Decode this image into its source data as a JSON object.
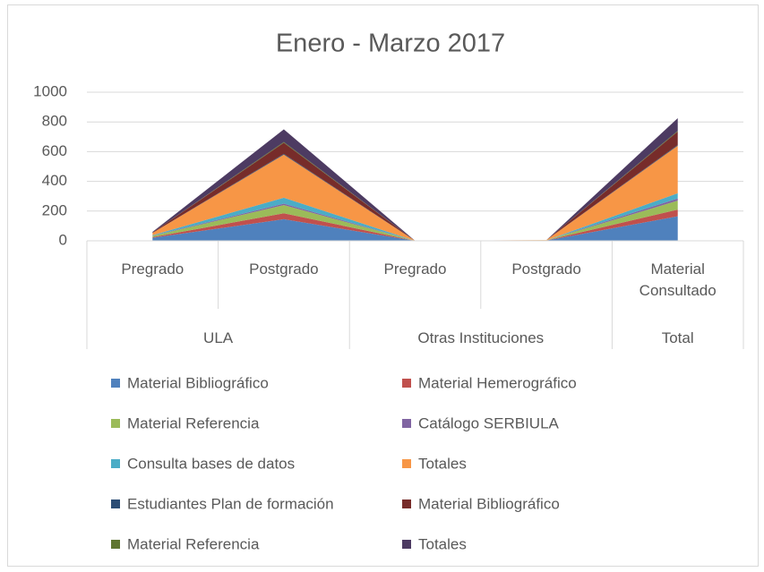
{
  "chart_data": {
    "type": "area",
    "stacked": true,
    "title": "Enero - Marzo 2017",
    "groups": [
      {
        "name": "ULA",
        "categories": [
          "Pregrado",
          "Postgrado"
        ]
      },
      {
        "name": "Otras Instituciones",
        "categories": [
          "Pregrado",
          "Postgrado"
        ]
      },
      {
        "name": "Total",
        "categories": [
          "Material Consultado"
        ]
      }
    ],
    "series": [
      {
        "name": "Material Bibliográfico",
        "color": "#4f81bd",
        "values": [
          20,
          145,
          0,
          2,
          165
        ]
      },
      {
        "name": "Material Hemerográfico",
        "color": "#c0504d",
        "values": [
          5,
          40,
          0,
          1,
          45
        ]
      },
      {
        "name": "Material Referencia",
        "color": "#9bbb59",
        "values": [
          8,
          55,
          0,
          1,
          60
        ]
      },
      {
        "name": "Catálogo SERBIULA",
        "color": "#8064a2",
        "values": [
          2,
          10,
          0,
          0,
          15
        ]
      },
      {
        "name": "Consulta bases de datos",
        "color": "#4bacc6",
        "values": [
          3,
          40,
          0,
          0,
          35
        ]
      },
      {
        "name": "Totales",
        "color": "#f79646",
        "values": [
          15,
          290,
          0,
          1,
          320
        ]
      },
      {
        "name": "Estudiantes Plan de formación",
        "color": "#2c4d75",
        "values": [
          0,
          5,
          0,
          0,
          5
        ]
      },
      {
        "name": "Material Bibliográfico",
        "color": "#772c2a",
        "values": [
          3,
          75,
          0,
          0,
          90
        ]
      },
      {
        "name": "Material Referencia",
        "color": "#5f7530",
        "values": [
          0,
          5,
          0,
          0,
          5
        ]
      },
      {
        "name": "Totales",
        "color": "#4d3b62",
        "values": [
          4,
          85,
          0,
          0,
          85
        ]
      }
    ],
    "ylim": [
      0,
      1000
    ],
    "yticks": [
      0,
      200,
      400,
      600,
      800,
      1000
    ],
    "grid": true,
    "legend": "bottom"
  }
}
